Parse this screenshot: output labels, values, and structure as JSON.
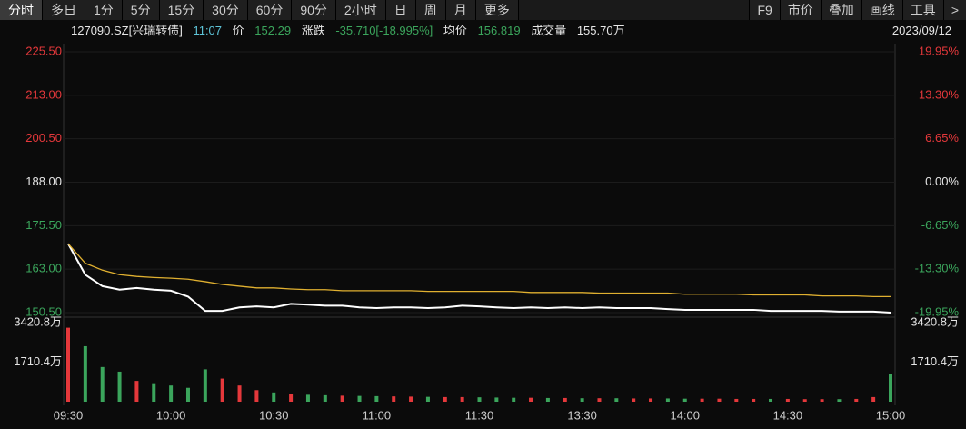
{
  "toolbar": {
    "tabs": [
      "分时",
      "多日",
      "1分",
      "5分",
      "15分",
      "30分",
      "60分",
      "90分",
      "2小时",
      "日",
      "周",
      "月",
      "更多"
    ],
    "tools": [
      "F9",
      "市价",
      "叠加",
      "画线",
      "工具",
      ">"
    ]
  },
  "quote": {
    "code": "127090.SZ[兴瑞转债]",
    "time": "11:07",
    "price_label": "价",
    "price": "152.29",
    "change_label": "涨跌",
    "change": "-35.710[-18.995%]",
    "avg_label": "均价",
    "avg": "156.819",
    "volume_label": "成交量",
    "volume": "155.70万",
    "date": "2023/09/12"
  },
  "chart_data": [
    {
      "type": "line",
      "up_color": "#e5383b",
      "down_color": "#3ba55c",
      "flat_color": "#e6e6e6",
      "ylim": [
        150.5,
        225.5
      ],
      "yticks": [
        {
          "value": 225.5,
          "label": "225.50"
        },
        {
          "value": 213,
          "label": "213.00"
        },
        {
          "value": 200.5,
          "label": "200.50"
        },
        {
          "value": 188,
          "label": "188.00"
        },
        {
          "value": 175.5,
          "label": "175.50"
        },
        {
          "value": 163,
          "label": "163.00"
        },
        {
          "value": 150.5,
          "label": "150.50"
        }
      ],
      "y2lim": [
        -19.95,
        19.95
      ],
      "y2ticks": [
        {
          "value": 19.95,
          "label": "19.95%"
        },
        {
          "value": 13.3,
          "label": "13.30%"
        },
        {
          "value": 6.65,
          "label": "6.65%"
        },
        {
          "value": 0,
          "label": "0.00%"
        },
        {
          "value": -6.65,
          "label": "-6.65%"
        },
        {
          "value": -13.3,
          "label": "-13.30%"
        },
        {
          "value": -19.95,
          "label": "-19.95%"
        }
      ],
      "series": [
        {
          "color": "#ffffff",
          "values": [
            170.3,
            161.4,
            158.1,
            157.1,
            157.6,
            157.1,
            156.8,
            155.1,
            151.0,
            151.0,
            152.0,
            152.3,
            152.0,
            153.0,
            152.8,
            152.5,
            152.5,
            152.0,
            151.8,
            152.0,
            152.0,
            151.8,
            152.0,
            152.5,
            152.3,
            152.0,
            151.8,
            152.0,
            151.8,
            152.0,
            151.8,
            152.0,
            151.8,
            151.8,
            151.8,
            151.5,
            151.3,
            151.3,
            151.3,
            151.3,
            151.3,
            151.0,
            151.0,
            151.0,
            151.0,
            150.8,
            150.8,
            150.8,
            150.5
          ]
        },
        {
          "color": "#e0b030",
          "values": [
            170.3,
            164.7,
            162.7,
            161.4,
            160.9,
            160.6,
            160.4,
            160.1,
            159.4,
            158.6,
            158.1,
            157.6,
            157.6,
            157.3,
            157.1,
            157.1,
            156.8,
            156.8,
            156.8,
            156.8,
            156.8,
            156.6,
            156.6,
            156.6,
            156.6,
            156.6,
            156.6,
            156.3,
            156.3,
            156.3,
            156.3,
            156.1,
            156.1,
            156.1,
            156.1,
            156.1,
            155.8,
            155.8,
            155.8,
            155.8,
            155.6,
            155.6,
            155.6,
            155.6,
            155.3,
            155.3,
            155.3,
            155.1,
            155.1
          ]
        }
      ]
    },
    {
      "type": "bar",
      "categories": [
        "09:30",
        null,
        null,
        null,
        null,
        null,
        "10:00",
        null,
        null,
        null,
        null,
        null,
        "10:30",
        null,
        null,
        null,
        null,
        null,
        "11:00",
        null,
        null,
        null,
        null,
        null,
        "11:30",
        null,
        null,
        null,
        null,
        null,
        "13:30",
        null,
        null,
        null,
        null,
        null,
        "14:00",
        null,
        null,
        null,
        null,
        null,
        "14:30",
        null,
        null,
        null,
        null,
        null,
        "15:00"
      ],
      "ylim": [
        0,
        3420.8
      ],
      "yticks": [
        {
          "value": 3420.8,
          "label": "3420.8万"
        },
        {
          "value": 1710.4,
          "label": "1710.4万"
        }
      ],
      "values": [
        3200,
        2400,
        1500,
        1300,
        900,
        800,
        700,
        600,
        1400,
        1000,
        700,
        500,
        400,
        350,
        300,
        280,
        260,
        250,
        240,
        230,
        220,
        210,
        200,
        200,
        190,
        180,
        170,
        170,
        160,
        160,
        150,
        150,
        150,
        140,
        140,
        140,
        130,
        130,
        130,
        120,
        120,
        120,
        120,
        110,
        110,
        110,
        120,
        200,
        1200
      ]
    }
  ]
}
